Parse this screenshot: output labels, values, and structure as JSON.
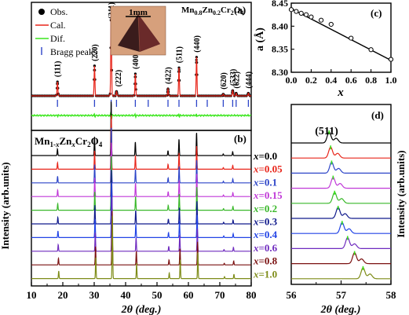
{
  "figure": {
    "y_axis_title": "Intensity (arb.units)",
    "colors": {
      "obs": "#000000",
      "cal": "#e8261b",
      "dif": "#3ce61e",
      "bragg": "#2d45c8",
      "crystal_bg": "#d6a07c",
      "crystal_dark": "#3a1c1c"
    }
  },
  "chart_data": [
    {
      "panel": "(a)",
      "type": "line",
      "title": "Mn0.8Zn0.2Cr2O4",
      "title_base": "Mn",
      "title_sub1": "0.8",
      "title_mid1": "Zn",
      "title_sub2": "0.2",
      "title_mid2": "Cr",
      "title_sub3": "2",
      "title_mid3": "O",
      "title_sub4": "4",
      "inset_label": "1mm",
      "legend": [
        "Obs.",
        "Cal.",
        "Dif.",
        "Bragg peaks"
      ],
      "peaks": [
        {
          "label": "(111)",
          "x": 18.3,
          "intensity": 0.16
        },
        {
          "label": "(220)",
          "x": 30.1,
          "intensity": 0.34
        },
        {
          "label": "(311)",
          "x": 35.4,
          "intensity": 1.0
        },
        {
          "label": "(222)",
          "x": 37.1,
          "intensity": 0.05
        },
        {
          "label": "(400)",
          "x": 43.1,
          "intensity": 0.25
        },
        {
          "label": "(422)",
          "x": 53.5,
          "intensity": 0.08
        },
        {
          "label": "(511)",
          "x": 57.0,
          "intensity": 0.32
        },
        {
          "label": "(440)",
          "x": 62.6,
          "intensity": 0.44
        },
        {
          "label": "(620)",
          "x": 71.1,
          "intensity": 0.02
        },
        {
          "label": "(533)",
          "x": 74.1,
          "intensity": 0.06
        },
        {
          "label": "(622)",
          "x": 75.2,
          "intensity": 0.03
        },
        {
          "label": "(444)",
          "x": 79.1,
          "intensity": 0.03
        }
      ],
      "bragg_positions": [
        18.3,
        30.1,
        35.4,
        37.1,
        43.1,
        47.2,
        53.5,
        57.0,
        62.6,
        66.0,
        71.1,
        74.1,
        75.2,
        79.1
      ]
    },
    {
      "panel": "(b)",
      "type": "line",
      "series_label": "Mn1-xZnxCr2O4",
      "xlabel": "2θ (deg.)",
      "xlim": [
        10,
        80
      ],
      "xticks": [
        10,
        20,
        30,
        40,
        50,
        60,
        70,
        80
      ],
      "peak_positions": [
        18.3,
        30.1,
        35.4,
        43.1,
        53.5,
        57.0,
        62.6,
        71.1,
        74.1
      ],
      "peak_rel_intensity": [
        0.12,
        0.34,
        1.0,
        0.25,
        0.09,
        0.3,
        0.42,
        0.03,
        0.07
      ],
      "series": [
        {
          "name": "x=0.0",
          "color": "#000000",
          "peak_shift": 0.0
        },
        {
          "name": "x=0.05",
          "color": "#e8261b",
          "peak_shift": 0.02
        },
        {
          "name": "x=0.1",
          "color": "#2d45c8",
          "peak_shift": 0.04
        },
        {
          "name": "x=0.15",
          "color": "#c038d8",
          "peak_shift": 0.06
        },
        {
          "name": "x=0.2",
          "color": "#3ab82a",
          "peak_shift": 0.08
        },
        {
          "name": "x=0.3",
          "color": "#101a8c",
          "peak_shift": 0.12
        },
        {
          "name": "x=0.4",
          "color": "#2244e6",
          "peak_shift": 0.16
        },
        {
          "name": "x=0.6",
          "color": "#6f2bbf",
          "peak_shift": 0.24
        },
        {
          "name": "x=0.8",
          "color": "#7a1010",
          "peak_shift": 0.32
        },
        {
          "name": "x=1.0",
          "color": "#7e8c18",
          "peak_shift": 0.4
        }
      ]
    },
    {
      "panel": "(c)",
      "type": "line",
      "xlabel": "x",
      "ylabel": "a (Å)",
      "xlim": [
        0.0,
        1.0
      ],
      "ylim": [
        8.3,
        8.45
      ],
      "xticks": [
        0.0,
        0.2,
        0.4,
        0.6,
        0.8,
        1.0
      ],
      "yticks": [
        8.3,
        8.35,
        8.4,
        8.45
      ],
      "points": [
        {
          "x": 0.0,
          "y": 8.436
        },
        {
          "x": 0.05,
          "y": 8.432
        },
        {
          "x": 0.1,
          "y": 8.428
        },
        {
          "x": 0.15,
          "y": 8.425
        },
        {
          "x": 0.2,
          "y": 8.42
        },
        {
          "x": 0.3,
          "y": 8.413
        },
        {
          "x": 0.4,
          "y": 8.404
        },
        {
          "x": 0.6,
          "y": 8.374
        },
        {
          "x": 0.8,
          "y": 8.349
        },
        {
          "x": 1.0,
          "y": 8.328
        }
      ],
      "fit": {
        "x0": 0.0,
        "y0": 8.438,
        "x1": 1.0,
        "y1": 8.326
      }
    },
    {
      "panel": "(d)",
      "type": "line",
      "peak_label": "(511)",
      "xlabel": "2θ (deg.)",
      "xlim": [
        56,
        58
      ],
      "xticks": [
        56,
        57,
        58
      ],
      "peak_centers": [
        56.76,
        56.79,
        56.81,
        56.84,
        56.87,
        56.94,
        57.02,
        57.13,
        57.27,
        57.44
      ]
    }
  ]
}
